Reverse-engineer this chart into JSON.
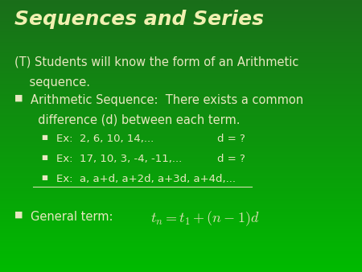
{
  "title": "Sequences and Series",
  "bg_color": "#1f8c1f",
  "bg_color_top": "#1a6e1a",
  "bg_color_bottom": "#00bb00",
  "title_color": "#f0f0b0",
  "text_color": "#e8e8c0",
  "formula_color": "#e0e0b8",
  "title_fontsize": 18,
  "body_fontsize": 10.5,
  "small_fontsize": 9.5,
  "line1": "(T) Students will know the form of an Arithmetic",
  "line1b": "    sequence.",
  "bullet1a": "Arithmetic Sequence:  There exists a common",
  "bullet1b": "  difference (d) between each term.",
  "sub1": "Ex:  2, 6, 10, 14,...",
  "sub1d": "d = ?",
  "sub2": "Ex:  17, 10, 3, -4, -11,...",
  "sub2d": "d = ?",
  "sub3": "Ex:  a, a+d, a+2d, a+3d, a+4d,...",
  "general_label": "General term:",
  "formula": "$t_{n} = t_{1} + (n-1)d$"
}
